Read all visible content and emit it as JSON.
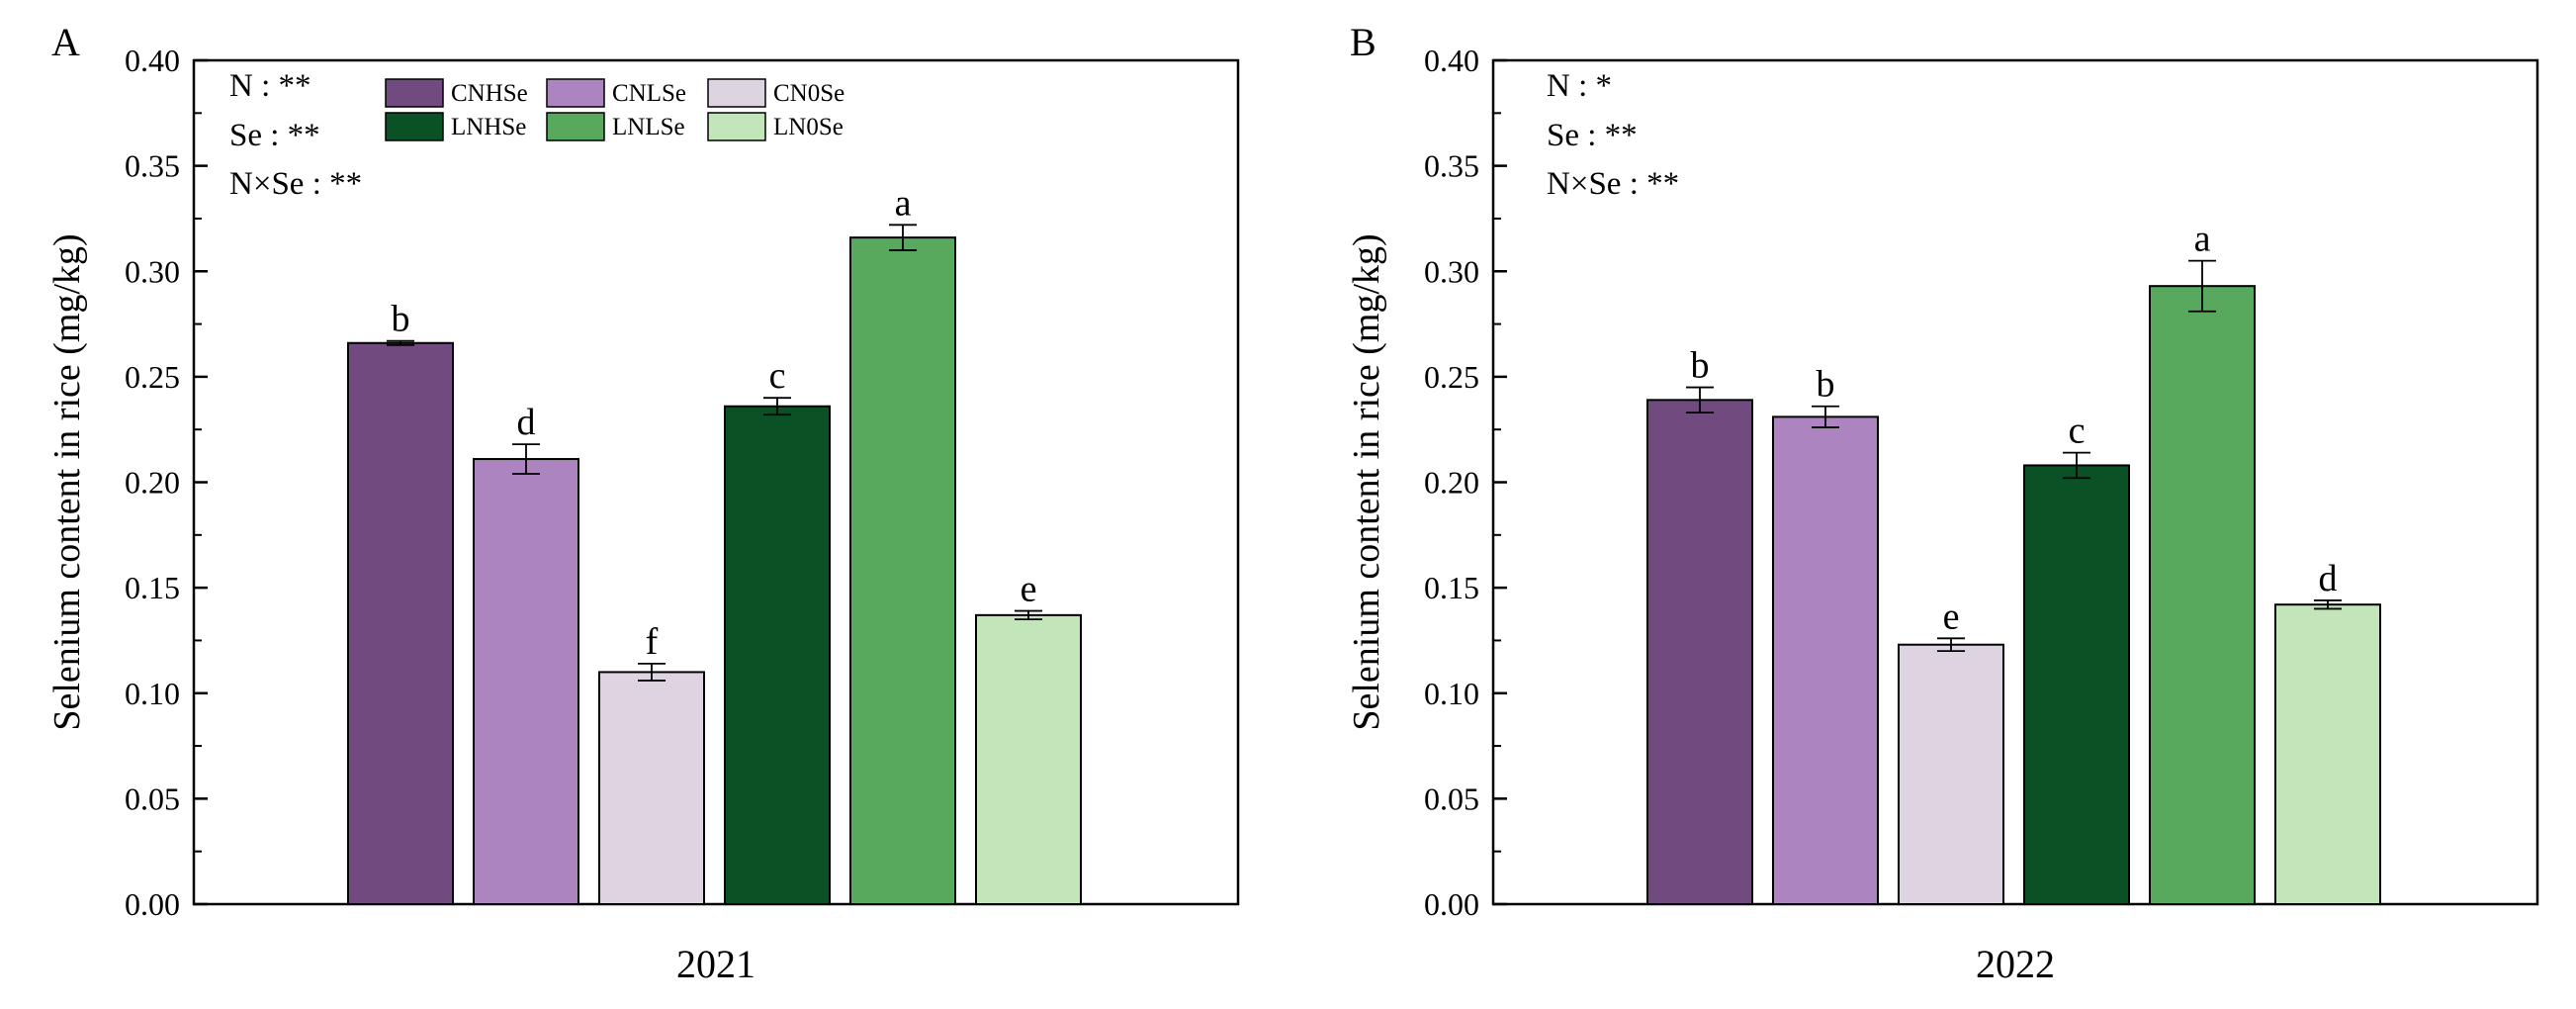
{
  "figure_colors": {
    "CNHSe": "#714b7f",
    "CNLSe": "#ac84bf",
    "CN0Se": "#ded3e0",
    "LNHSe": "#0a5126",
    "LNLSe": "#58a95e",
    "LN0Se": "#c2e5b9"
  },
  "chart_data": [
    {
      "type": "bar",
      "panel": "A",
      "title": "",
      "xlabel": "2021",
      "ylabel": "Selenium content in rice (mg/kg)",
      "ylim": [
        0,
        0.4
      ],
      "yticks": [
        "0.00",
        "0.05",
        "0.10",
        "0.15",
        "0.20",
        "0.25",
        "0.30",
        "0.35",
        "0.40"
      ],
      "categories": [
        "CNHSe",
        "CNLSe",
        "CN0Se",
        "LNHSe",
        "LNLSe",
        "LN0Se"
      ],
      "values": [
        0.266,
        0.211,
        0.11,
        0.236,
        0.316,
        0.137
      ],
      "errors": [
        0.001,
        0.007,
        0.004,
        0.004,
        0.006,
        0.002
      ],
      "letters": [
        "b",
        "d",
        "f",
        "c",
        "a",
        "e"
      ],
      "significance": [
        {
          "factor": "N",
          "label": "N : **"
        },
        {
          "factor": "Se",
          "label": "Se : **"
        },
        {
          "factor": "NxSe",
          "label": "N×Se : **"
        }
      ],
      "legend": [
        "CNHSe",
        "CNLSe",
        "CN0Se",
        "LNHSe",
        "LNLSe",
        "LN0Se"
      ]
    },
    {
      "type": "bar",
      "panel": "B",
      "title": "",
      "xlabel": "2022",
      "ylabel": "Selenium content in rice (mg/kg)",
      "ylim": [
        0,
        0.4
      ],
      "yticks": [
        "0.00",
        "0.05",
        "0.10",
        "0.15",
        "0.20",
        "0.25",
        "0.30",
        "0.35",
        "0.40"
      ],
      "categories": [
        "CNHSe",
        "CNLSe",
        "CN0Se",
        "LNHSe",
        "LNLSe",
        "LN0Se"
      ],
      "values": [
        0.239,
        0.231,
        0.123,
        0.208,
        0.293,
        0.142
      ],
      "errors": [
        0.006,
        0.005,
        0.003,
        0.006,
        0.012,
        0.002
      ],
      "letters": [
        "b",
        "b",
        "e",
        "c",
        "a",
        "d"
      ],
      "significance": [
        {
          "factor": "N",
          "label": "N : *"
        },
        {
          "factor": "Se",
          "label": "Se : **"
        },
        {
          "factor": "NxSe",
          "label": "N×Se : **"
        }
      ],
      "legend": []
    }
  ]
}
